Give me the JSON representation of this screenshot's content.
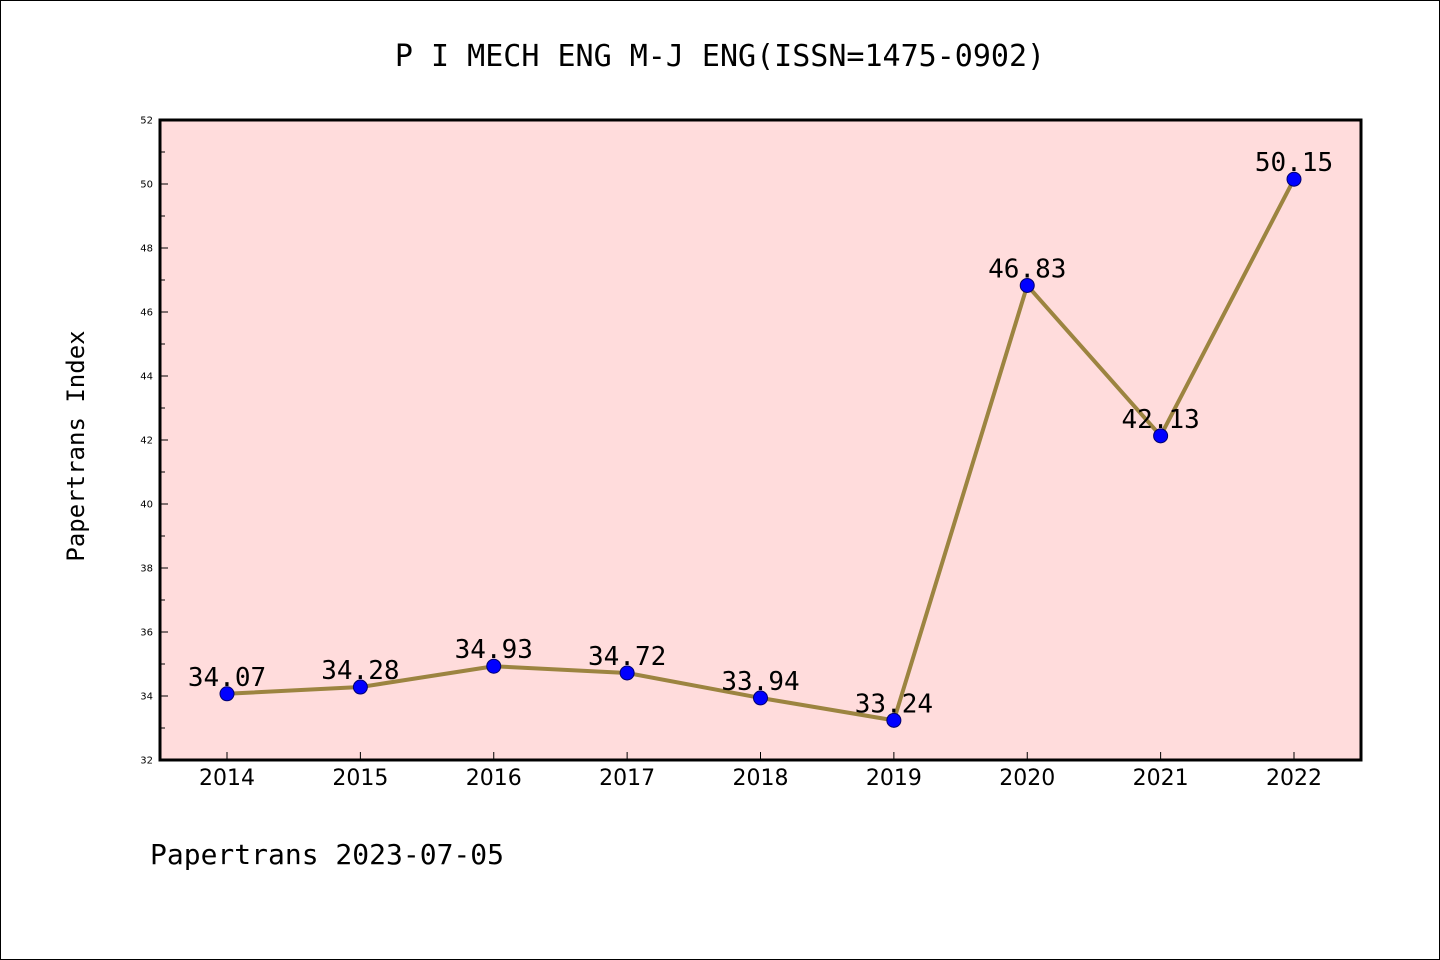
{
  "chart_data": {
    "type": "line",
    "title": "P I MECH ENG M-J ENG(ISSN=1475-0902)",
    "xlabel": "",
    "ylabel": "Papertrans Index",
    "categories": [
      "2014",
      "2015",
      "2016",
      "2017",
      "2018",
      "2019",
      "2020",
      "2021",
      "2022"
    ],
    "values": [
      34.07,
      34.28,
      34.93,
      34.72,
      33.94,
      33.24,
      46.83,
      42.13,
      50.15
    ],
    "data_labels": [
      "34.07",
      "34.28",
      "34.93",
      "34.72",
      "33.94",
      "33.24",
      "46.83",
      "42.13",
      "50.15"
    ],
    "ylim": [
      32,
      52
    ],
    "yticks": [
      32,
      34,
      36,
      38,
      40,
      42,
      44,
      46,
      48,
      50,
      52
    ],
    "grid": false,
    "legend": "none",
    "colors": {
      "plot_background": "#ffdcdc",
      "line": "#9c8440",
      "marker": "#0000ff"
    }
  },
  "footer": "Papertrans 2023-07-05"
}
